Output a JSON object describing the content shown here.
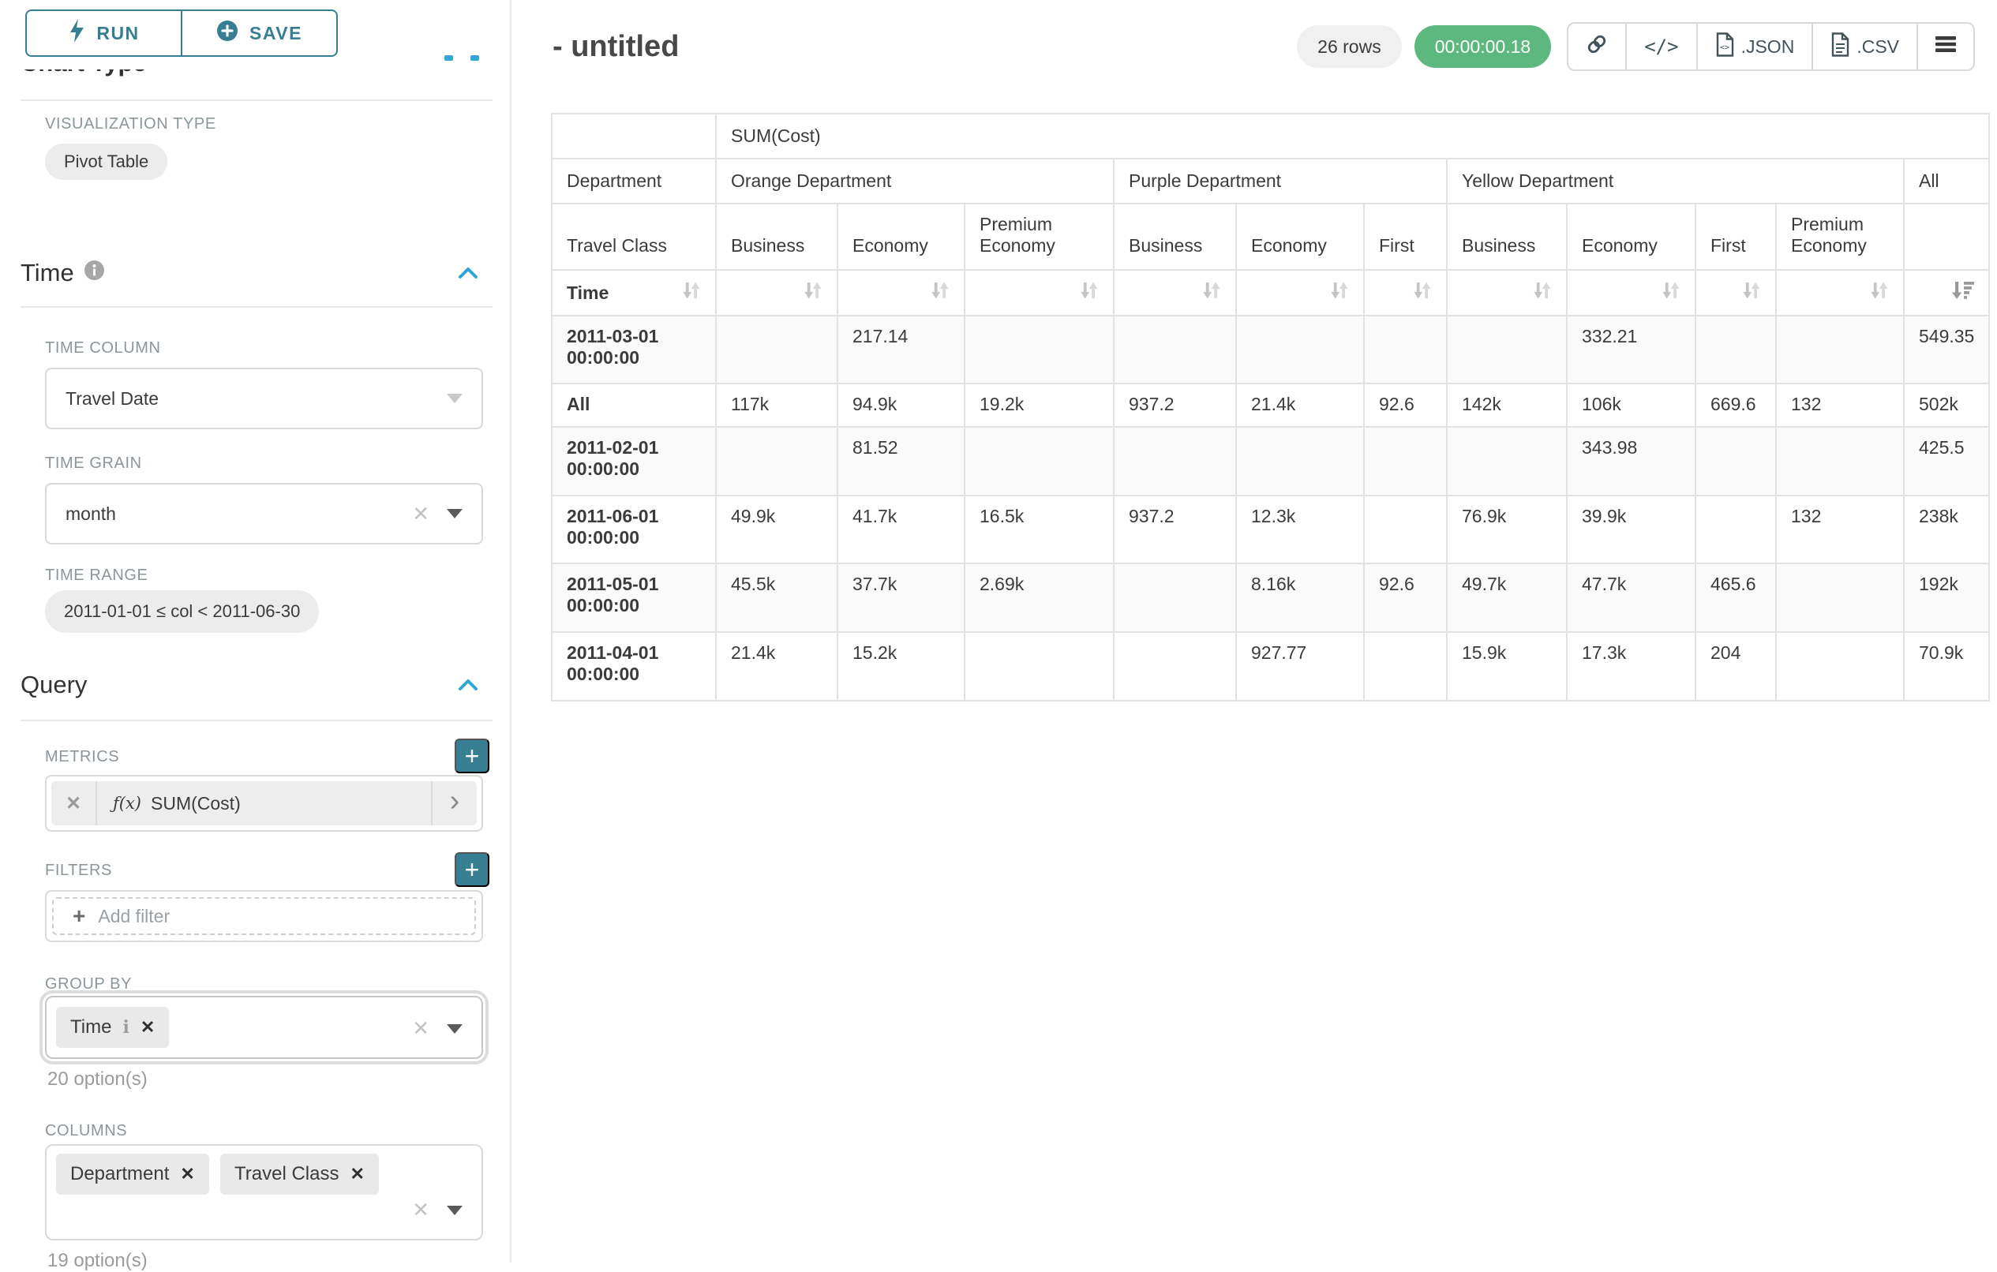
{
  "panel": {
    "run_label": "RUN",
    "save_label": "SAVE",
    "chart_type_heading": "Chart Type",
    "visualization_type_label": "VISUALIZATION TYPE",
    "visualization_type_value": "Pivot Table",
    "time_section": {
      "heading": "Time",
      "time_column_label": "TIME COLUMN",
      "time_column_value": "Travel Date",
      "time_grain_label": "TIME GRAIN",
      "time_grain_value": "month",
      "time_range_label": "TIME RANGE",
      "time_range_value": "2011-01-01 ≤ col < 2011-06-30"
    },
    "query_section": {
      "heading": "Query",
      "metrics_label": "METRICS",
      "metric_fx": "ƒ(x)",
      "metric_name": "SUM(Cost)",
      "filters_label": "FILTERS",
      "add_filter_label": "Add filter",
      "group_by_label": "GROUP BY",
      "group_by_tag": "Time",
      "group_by_hint": "20 option(s)",
      "columns_label": "COLUMNS",
      "columns_tags": [
        "Department",
        "Travel Class"
      ],
      "columns_hint": "19 option(s)"
    }
  },
  "header": {
    "title": "- untitled",
    "rows_badge": "26 rows",
    "timer_badge": "00:00:00.18",
    "json_label": ".JSON",
    "csv_label": ".CSV"
  },
  "table": {
    "metric_header": "SUM(Cost)",
    "department_label": "Department",
    "travel_class_label": "Travel Class",
    "time_label": "Time",
    "groups": [
      {
        "label": "Orange Department",
        "cols": [
          "Business",
          "Economy",
          "Premium Economy"
        ]
      },
      {
        "label": "Purple Department",
        "cols": [
          "Business",
          "Economy",
          "First"
        ]
      },
      {
        "label": "Yellow Department",
        "cols": [
          "Business",
          "Economy",
          "First",
          "Premium Economy"
        ]
      },
      {
        "label": "All",
        "cols": [
          ""
        ]
      }
    ],
    "rows": [
      {
        "label": "2011-03-01 00:00:00",
        "values": [
          "",
          "217.14",
          "",
          "",
          "",
          "",
          "",
          "332.21",
          "",
          "",
          "549.35"
        ]
      },
      {
        "label": "All",
        "values": [
          "117k",
          "94.9k",
          "19.2k",
          "937.2",
          "21.4k",
          "92.6",
          "142k",
          "106k",
          "669.6",
          "132",
          "502k"
        ]
      },
      {
        "label": "2011-02-01 00:00:00",
        "values": [
          "",
          "81.52",
          "",
          "",
          "",
          "",
          "",
          "343.98",
          "",
          "",
          "425.5"
        ]
      },
      {
        "label": "2011-06-01 00:00:00",
        "values": [
          "49.9k",
          "41.7k",
          "16.5k",
          "937.2",
          "12.3k",
          "",
          "76.9k",
          "39.9k",
          "",
          "132",
          "238k"
        ]
      },
      {
        "label": "2011-05-01 00:00:00",
        "values": [
          "45.5k",
          "37.7k",
          "2.69k",
          "",
          "8.16k",
          "92.6",
          "49.7k",
          "47.7k",
          "465.6",
          "",
          "192k"
        ]
      },
      {
        "label": "2011-04-01 00:00:00",
        "values": [
          "21.4k",
          "15.2k",
          "",
          "",
          "927.77",
          "",
          "15.9k",
          "17.3k",
          "204",
          "",
          "70.9k"
        ]
      }
    ]
  },
  "colors": {
    "accent_teal": "#377e93",
    "chevron_blue": "#2fa6d3",
    "badge_green": "#5cb87f"
  }
}
